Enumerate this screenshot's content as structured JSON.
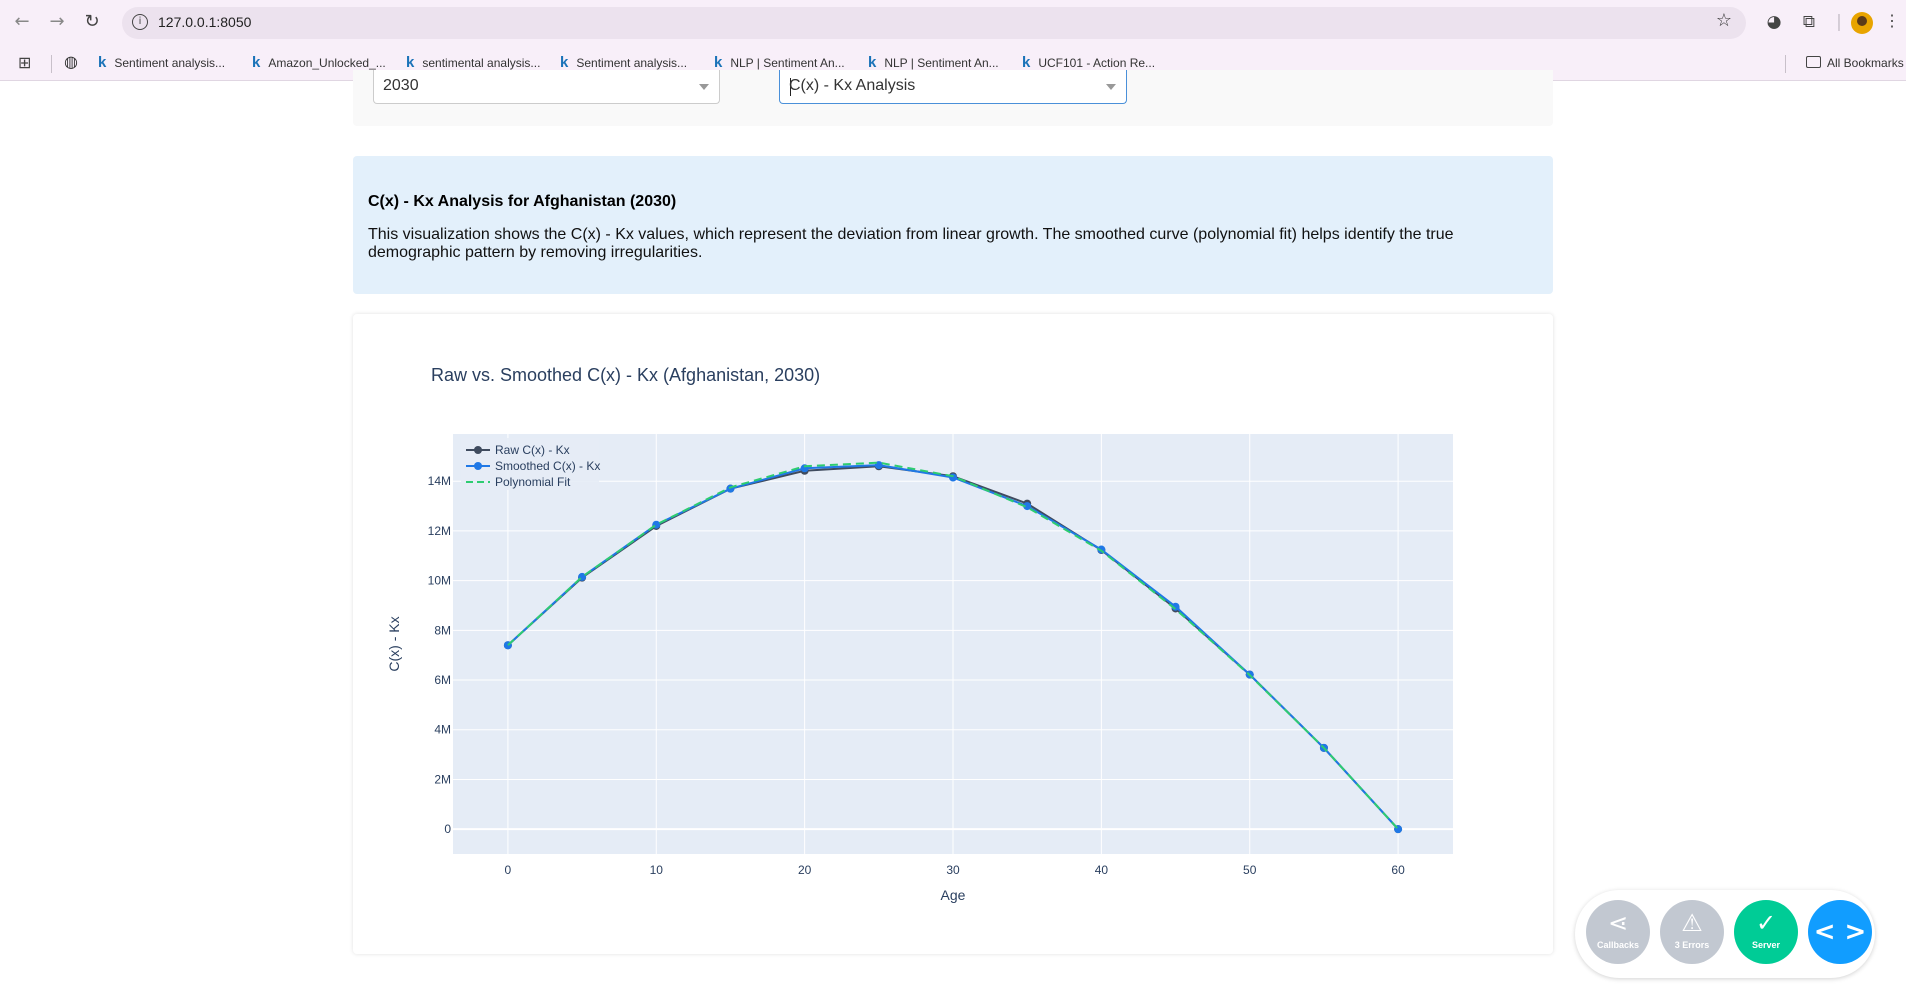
{
  "browser": {
    "url": "127.0.0.1:8050",
    "bookmarks": [
      "Sentiment analysis...",
      "Amazon_Unlocked_...",
      "sentimental analysis...",
      "Sentiment analysis...",
      "NLP | Sentiment An...",
      "NLP | Sentiment An...",
      "UCF101 - Action Re..."
    ],
    "bookmark_icon_letter": "k",
    "all_bookmarks": "All Bookmarks"
  },
  "controls": {
    "year_value": "2030",
    "analysis_value": "C(x) - Kx Analysis"
  },
  "info": {
    "title": "C(x) - Kx Analysis for Afghanistan (2030)",
    "text": "This visualization shows the C(x) - Kx values, which represent the deviation from linear growth. The smoothed curve (polynomial fit) helps identify the true demographic pattern by removing irregularities."
  },
  "chart_data": {
    "type": "line",
    "title": "Raw vs. Smoothed C(x) - Kx (Afghanistan, 2030)",
    "xlabel": "Age",
    "ylabel": "C(x) - Kx",
    "x": [
      0,
      5,
      10,
      15,
      20,
      25,
      30,
      35,
      40,
      45,
      50,
      55,
      60
    ],
    "xlim": [
      -3.7,
      63.7
    ],
    "ylim": [
      -1000000,
      15900000
    ],
    "x_ticks": [
      0,
      10,
      20,
      30,
      40,
      50,
      60
    ],
    "y_ticks": [
      0,
      2000000,
      4000000,
      6000000,
      8000000,
      10000000,
      12000000,
      14000000
    ],
    "y_tick_labels": [
      "0",
      "2M",
      "4M",
      "6M",
      "8M",
      "10M",
      "12M",
      "14M"
    ],
    "grid": true,
    "legend_position": "top-left",
    "series": [
      {
        "name": "Raw C(x) - Kx",
        "color": "#3f4b5e",
        "style": "lines+markers",
        "values": [
          7400000,
          10120000,
          12200000,
          13700000,
          14420000,
          14600000,
          14200000,
          13100000,
          11230000,
          8880000,
          6220000,
          3270000,
          0
        ]
      },
      {
        "name": "Smoothed C(x) - Kx",
        "color": "#1f78e6",
        "style": "lines+markers",
        "values": [
          7400000,
          10150000,
          12250000,
          13700000,
          14520000,
          14650000,
          14150000,
          13000000,
          11250000,
          8950000,
          6220000,
          3270000,
          0
        ]
      },
      {
        "name": "Polynomial Fit",
        "color": "#2ecc71",
        "style": "dash",
        "values": [
          7400000,
          10150000,
          12250000,
          13750000,
          14600000,
          14750000,
          14200000,
          12950000,
          11200000,
          8850000,
          6200000,
          3270000,
          0
        ]
      }
    ]
  },
  "debug_menu": {
    "callbacks": "Callbacks",
    "errors": "3 Errors",
    "server": "Server"
  },
  "colors": {
    "plot_bg": "#e5ecf6",
    "info_bg": "#e3f0fb",
    "dash_gray": "#c2c8d1",
    "dash_green": "#00cc96",
    "dash_blue": "#119dff"
  }
}
